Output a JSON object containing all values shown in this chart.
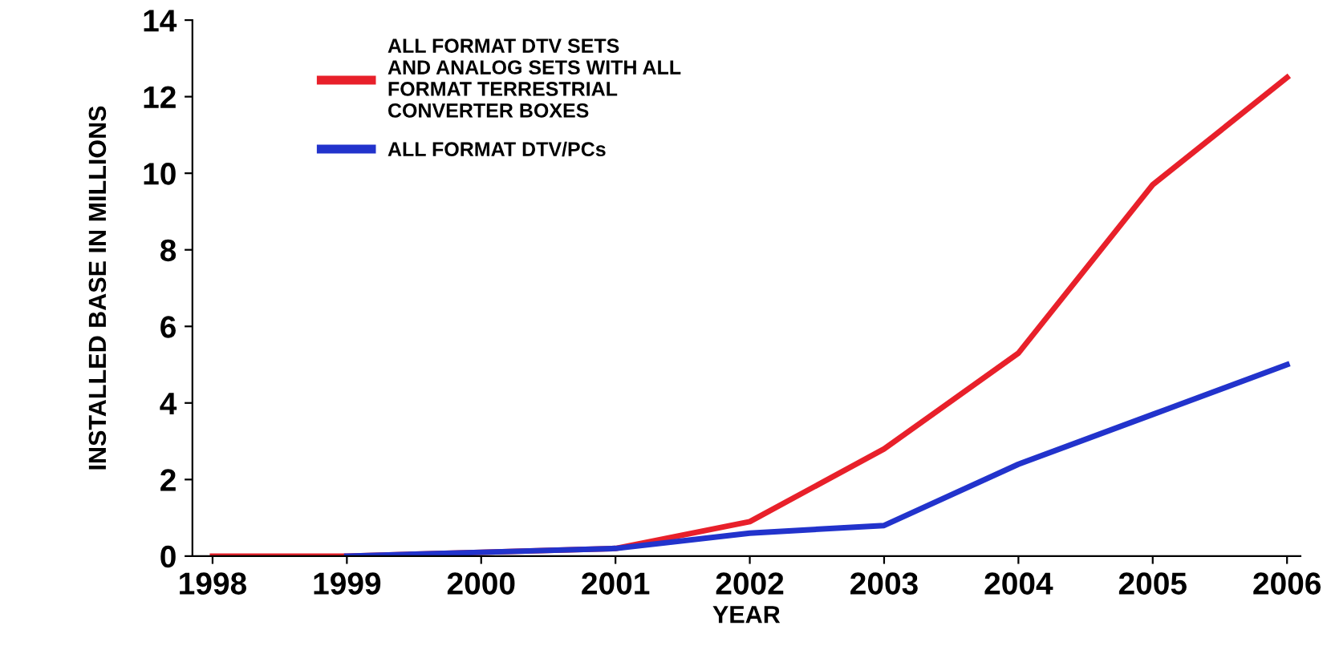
{
  "chart_data": {
    "type": "line",
    "xlabel": "YEAR",
    "ylabel": "INSTALLED BASE IN MILLIONS",
    "categories": [
      "1998",
      "1999",
      "2000",
      "2001",
      "2002",
      "2003",
      "2004",
      "2005",
      "2006"
    ],
    "series": [
      {
        "name": "ALL FORMAT DTV SETS\nAND ANALOG SETS WITH ALL\nFORMAT TERRESTRIAL\nCONVERTER BOXES",
        "color": "#e8202a",
        "values": [
          0,
          0,
          0.1,
          0.2,
          0.9,
          2.8,
          5.3,
          9.7,
          12.5
        ]
      },
      {
        "name": "ALL FORMAT DTV/PCs",
        "color": "#2233cc",
        "values": [
          null,
          0,
          0.1,
          0.2,
          0.6,
          0.8,
          2.4,
          3.7,
          5.0
        ]
      }
    ],
    "ylim": [
      0,
      14
    ],
    "yticks": [
      0,
      2,
      4,
      6,
      8,
      10,
      12,
      14
    ],
    "grid": false,
    "legend": "top left",
    "marker": "none",
    "line_style": "solid"
  }
}
